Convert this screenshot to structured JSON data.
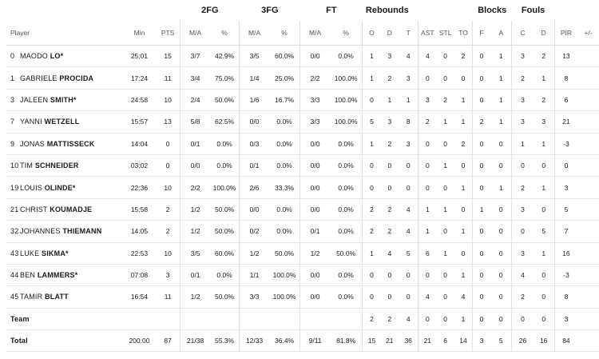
{
  "group_headers": {
    "fg2": "2FG",
    "fg3": "3FG",
    "ft": "FT",
    "rebounds": "Rebounds",
    "blocks": "Blocks",
    "fouls": "Fouls"
  },
  "columns": {
    "player": "Player",
    "min": "Min",
    "pts": "PTS",
    "fg2_ma": "M/A",
    "fg2_pct": "%",
    "fg3_ma": "M/A",
    "fg3_pct": "%",
    "ft_ma": "M/A",
    "ft_pct": "%",
    "reb_o": "O",
    "reb_d": "D",
    "reb_t": "T",
    "ast": "AST",
    "stl": "STL",
    "to": "TO",
    "blk_f": "F",
    "blk_a": "A",
    "fl_c": "C",
    "fl_d": "D",
    "pir": "PIR",
    "pm": "+/-"
  },
  "players": [
    {
      "num": "0",
      "first": "MAODO",
      "last": "LO*",
      "min": "25:01",
      "pts": "15",
      "fg2_ma": "3/7",
      "fg2_pct": "42.9%",
      "fg3_ma": "3/5",
      "fg3_pct": "60.0%",
      "ft_ma": "0/0",
      "ft_pct": "0.0%",
      "reb_o": "1",
      "reb_d": "3",
      "reb_t": "4",
      "ast": "4",
      "stl": "0",
      "to": "2",
      "blk_f": "0",
      "blk_a": "1",
      "fl_c": "3",
      "fl_d": "2",
      "pir": "13",
      "pm": ""
    },
    {
      "num": "1",
      "first": "GABRIELE",
      "last": "PROCIDA",
      "min": "17:24",
      "pts": "11",
      "fg2_ma": "3/4",
      "fg2_pct": "75.0%",
      "fg3_ma": "1/4",
      "fg3_pct": "25.0%",
      "ft_ma": "2/2",
      "ft_pct": "100.0%",
      "reb_o": "1",
      "reb_d": "2",
      "reb_t": "3",
      "ast": "0",
      "stl": "0",
      "to": "0",
      "blk_f": "0",
      "blk_a": "1",
      "fl_c": "2",
      "fl_d": "1",
      "pir": "8",
      "pm": ""
    },
    {
      "num": "3",
      "first": "JALEEN",
      "last": "SMITH*",
      "min": "24:58",
      "pts": "10",
      "fg2_ma": "2/4",
      "fg2_pct": "50.0%",
      "fg3_ma": "1/6",
      "fg3_pct": "16.7%",
      "ft_ma": "3/3",
      "ft_pct": "100.0%",
      "reb_o": "0",
      "reb_d": "1",
      "reb_t": "1",
      "ast": "3",
      "stl": "2",
      "to": "1",
      "blk_f": "0",
      "blk_a": "1",
      "fl_c": "3",
      "fl_d": "2",
      "pir": "6",
      "pm": ""
    },
    {
      "num": "7",
      "first": "YANNI",
      "last": "WETZELL",
      "min": "15:57",
      "pts": "13",
      "fg2_ma": "5/8",
      "fg2_pct": "62.5%",
      "fg3_ma": "0/0",
      "fg3_pct": "0.0%",
      "ft_ma": "3/3",
      "ft_pct": "100.0%",
      "reb_o": "5",
      "reb_d": "3",
      "reb_t": "8",
      "ast": "2",
      "stl": "1",
      "to": "1",
      "blk_f": "2",
      "blk_a": "1",
      "fl_c": "3",
      "fl_d": "3",
      "pir": "21",
      "pm": ""
    },
    {
      "num": "9",
      "first": "JONAS",
      "last": "MATTISSECK",
      "min": "14:04",
      "pts": "0",
      "fg2_ma": "0/1",
      "fg2_pct": "0.0%",
      "fg3_ma": "0/3",
      "fg3_pct": "0.0%",
      "ft_ma": "0/0",
      "ft_pct": "0.0%",
      "reb_o": "1",
      "reb_d": "2",
      "reb_t": "3",
      "ast": "0",
      "stl": "0",
      "to": "2",
      "blk_f": "0",
      "blk_a": "0",
      "fl_c": "1",
      "fl_d": "1",
      "pir": "-3",
      "pm": ""
    },
    {
      "num": "10",
      "first": "TIM",
      "last": "SCHNEIDER",
      "min": "03:02",
      "pts": "0",
      "fg2_ma": "0/0",
      "fg2_pct": "0.0%",
      "fg3_ma": "0/1",
      "fg3_pct": "0.0%",
      "ft_ma": "0/0",
      "ft_pct": "0.0%",
      "reb_o": "0",
      "reb_d": "0",
      "reb_t": "0",
      "ast": "0",
      "stl": "1",
      "to": "0",
      "blk_f": "0",
      "blk_a": "0",
      "fl_c": "0",
      "fl_d": "0",
      "pir": "0",
      "pm": ""
    },
    {
      "num": "19",
      "first": "LOUIS",
      "last": "OLINDE*",
      "min": "22:36",
      "pts": "10",
      "fg2_ma": "2/2",
      "fg2_pct": "100.0%",
      "fg3_ma": "2/6",
      "fg3_pct": "33.3%",
      "ft_ma": "0/0",
      "ft_pct": "0.0%",
      "reb_o": "0",
      "reb_d": "0",
      "reb_t": "0",
      "ast": "0",
      "stl": "0",
      "to": "1",
      "blk_f": "0",
      "blk_a": "1",
      "fl_c": "2",
      "fl_d": "1",
      "pir": "3",
      "pm": ""
    },
    {
      "num": "21",
      "first": "CHRIST",
      "last": "KOUMADJE",
      "min": "15:58",
      "pts": "2",
      "fg2_ma": "1/2",
      "fg2_pct": "50.0%",
      "fg3_ma": "0/0",
      "fg3_pct": "0.0%",
      "ft_ma": "0/0",
      "ft_pct": "0.0%",
      "reb_o": "2",
      "reb_d": "2",
      "reb_t": "4",
      "ast": "1",
      "stl": "1",
      "to": "0",
      "blk_f": "1",
      "blk_a": "0",
      "fl_c": "3",
      "fl_d": "0",
      "pir": "5",
      "pm": ""
    },
    {
      "num": "32",
      "first": "JOHANNES",
      "last": "THIEMANN",
      "min": "14:05",
      "pts": "2",
      "fg2_ma": "1/2",
      "fg2_pct": "50.0%",
      "fg3_ma": "0/2",
      "fg3_pct": "0.0%",
      "ft_ma": "0/1",
      "ft_pct": "0.0%",
      "reb_o": "2",
      "reb_d": "2",
      "reb_t": "4",
      "ast": "1",
      "stl": "0",
      "to": "1",
      "blk_f": "0",
      "blk_a": "0",
      "fl_c": "0",
      "fl_d": "5",
      "pir": "7",
      "pm": ""
    },
    {
      "num": "43",
      "first": "LUKE",
      "last": "SIKMA*",
      "min": "22:53",
      "pts": "10",
      "fg2_ma": "3/5",
      "fg2_pct": "60.0%",
      "fg3_ma": "1/2",
      "fg3_pct": "50.0%",
      "ft_ma": "1/2",
      "ft_pct": "50.0%",
      "reb_o": "1",
      "reb_d": "4",
      "reb_t": "5",
      "ast": "6",
      "stl": "1",
      "to": "0",
      "blk_f": "0",
      "blk_a": "0",
      "fl_c": "3",
      "fl_d": "1",
      "pir": "16",
      "pm": ""
    },
    {
      "num": "44",
      "first": "BEN",
      "last": "LAMMERS*",
      "min": "07:08",
      "pts": "3",
      "fg2_ma": "0/1",
      "fg2_pct": "0.0%",
      "fg3_ma": "1/1",
      "fg3_pct": "100.0%",
      "ft_ma": "0/0",
      "ft_pct": "0.0%",
      "reb_o": "0",
      "reb_d": "0",
      "reb_t": "0",
      "ast": "0",
      "stl": "0",
      "to": "1",
      "blk_f": "0",
      "blk_a": "0",
      "fl_c": "4",
      "fl_d": "0",
      "pir": "-3",
      "pm": ""
    },
    {
      "num": "45",
      "first": "TAMIR",
      "last": "BLATT",
      "min": "16:54",
      "pts": "11",
      "fg2_ma": "1/2",
      "fg2_pct": "50.0%",
      "fg3_ma": "3/3",
      "fg3_pct": "100.0%",
      "ft_ma": "0/0",
      "ft_pct": "0.0%",
      "reb_o": "0",
      "reb_d": "0",
      "reb_t": "0",
      "ast": "4",
      "stl": "0",
      "to": "4",
      "blk_f": "0",
      "blk_a": "0",
      "fl_c": "2",
      "fl_d": "0",
      "pir": "8",
      "pm": ""
    }
  ],
  "team": {
    "label": "Team",
    "min": "",
    "pts": "",
    "fg2_ma": "",
    "fg2_pct": "",
    "fg3_ma": "",
    "fg3_pct": "",
    "ft_ma": "",
    "ft_pct": "",
    "reb_o": "2",
    "reb_d": "2",
    "reb_t": "4",
    "ast": "0",
    "stl": "0",
    "to": "1",
    "blk_f": "0",
    "blk_a": "0",
    "fl_c": "0",
    "fl_d": "0",
    "pir": "3",
    "pm": ""
  },
  "total": {
    "label": "Total",
    "min": "200:00",
    "pts": "87",
    "fg2_ma": "21/38",
    "fg2_pct": "55.3%",
    "fg3_ma": "12/33",
    "fg3_pct": "36.4%",
    "ft_ma": "9/11",
    "ft_pct": "81.8%",
    "reb_o": "15",
    "reb_d": "21",
    "reb_t": "36",
    "ast": "21",
    "stl": "6",
    "to": "14",
    "blk_f": "3",
    "blk_a": "5",
    "fl_c": "26",
    "fl_d": "16",
    "pir": "84",
    "pm": ""
  }
}
